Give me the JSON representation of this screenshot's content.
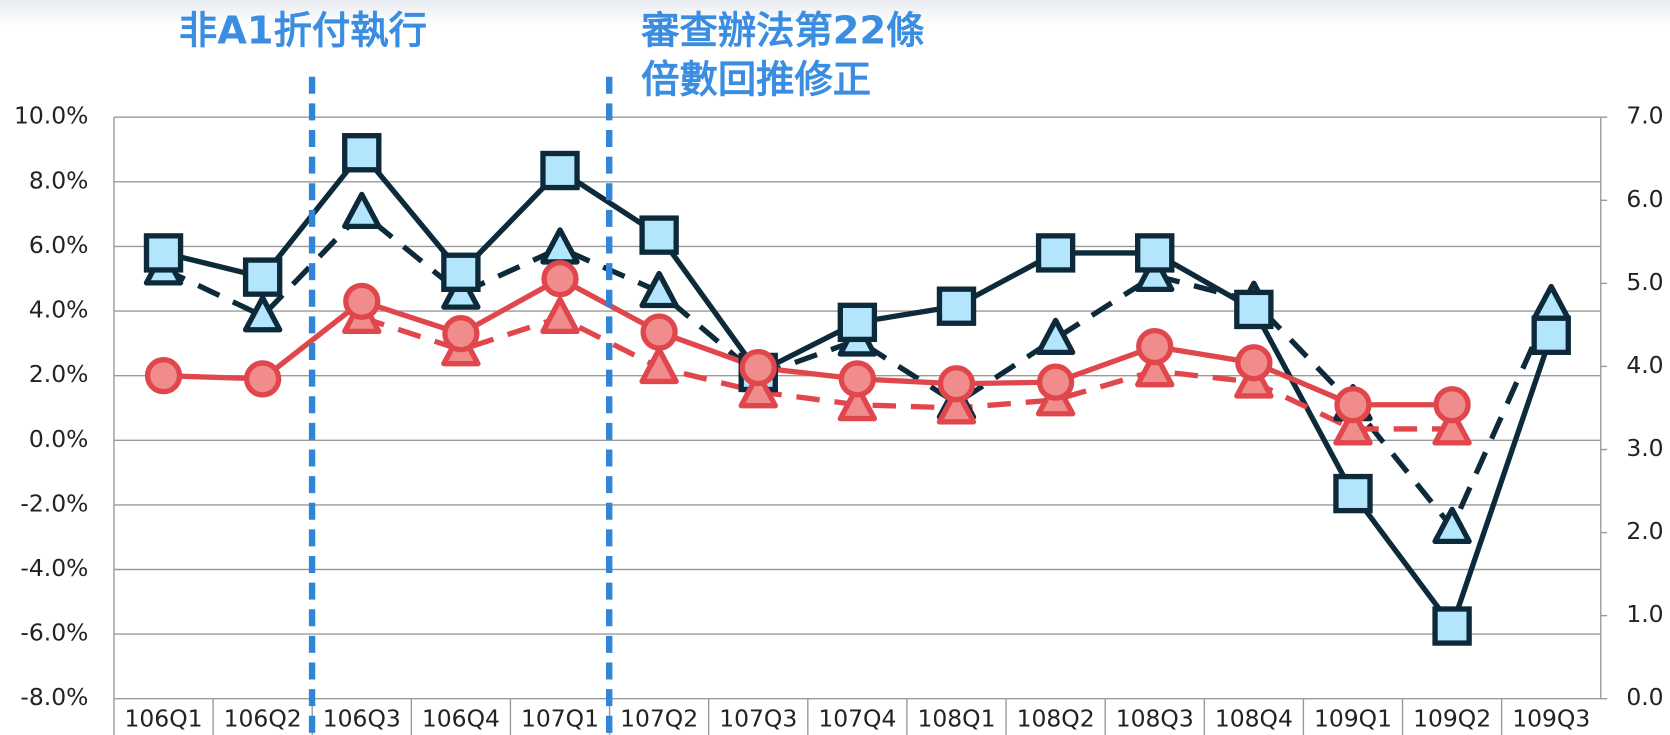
{
  "chart_data": {
    "type": "line",
    "annotations": [
      "非A1折付執行",
      "審查辦法第22條",
      "倍數回推修正"
    ],
    "categories": [
      "106Q1",
      "106Q2",
      "106Q3",
      "106Q4",
      "107Q1",
      "107Q2",
      "107Q3",
      "107Q4",
      "108Q1",
      "108Q2",
      "108Q3",
      "108Q4",
      "109Q1",
      "109Q2",
      "109Q3"
    ],
    "series": [
      {
        "color": "#0d2a3a",
        "fill": "#b3e5fc",
        "marker": "triangle",
        "line_style": "dashed",
        "values": [
          5.3,
          3.85,
          7.05,
          4.55,
          5.95,
          4.6,
          2.0,
          3.1,
          1.15,
          3.15,
          5.1,
          4.3,
          1.1,
          -2.7,
          4.2
        ]
      },
      {
        "color": "#0d2a3a",
        "fill": "#b3e5fc",
        "marker": "square",
        "line_style": "solid",
        "values": [
          5.8,
          5.05,
          8.9,
          5.2,
          8.35,
          6.35,
          2.1,
          3.65,
          4.15,
          5.8,
          5.8,
          4.05,
          -1.65,
          -5.75,
          3.25
        ]
      },
      {
        "color": "#e0474c",
        "fill": "#f08c8c",
        "marker": "triangle",
        "line_style": "dashed",
        "values": [
          null,
          null,
          3.8,
          2.8,
          3.8,
          2.25,
          1.5,
          1.1,
          1.0,
          1.25,
          2.15,
          1.8,
          0.35,
          0.35,
          null
        ]
      },
      {
        "color": "#e0474c",
        "fill": "#f08c8c",
        "marker": "circle",
        "line_style": "solid",
        "values": [
          2.0,
          1.9,
          4.3,
          3.3,
          5.0,
          3.35,
          2.25,
          1.9,
          1.75,
          1.8,
          2.9,
          2.4,
          1.1,
          1.1,
          null
        ]
      }
    ],
    "ylim": [
      -8,
      10
    ],
    "yticks": [
      {
        "value": -8,
        "label": "-8.0%"
      },
      {
        "value": -6,
        "label": "-6.0%"
      },
      {
        "value": -4,
        "label": "-4.0%"
      },
      {
        "value": -2,
        "label": "-2.0%"
      },
      {
        "value": 0,
        "label": "0.0%"
      },
      {
        "value": 2,
        "label": "2.0%"
      },
      {
        "value": 4,
        "label": "4.0%"
      },
      {
        "value": 6,
        "label": "6.0%"
      },
      {
        "value": 8,
        "label": "8.0%"
      },
      {
        "value": 10,
        "label": "10.0%"
      }
    ],
    "y2lim": [
      0,
      7
    ],
    "y2ticks": [
      {
        "value": 0,
        "label": "0.0"
      },
      {
        "value": 1,
        "label": "1.0"
      },
      {
        "value": 2,
        "label": "2.0"
      },
      {
        "value": 3,
        "label": "3.0"
      },
      {
        "value": 4,
        "label": "4.0"
      },
      {
        "value": 5,
        "label": "5.0"
      },
      {
        "value": 6,
        "label": "6.0"
      },
      {
        "value": 7,
        "label": "7.0"
      }
    ],
    "grid": true
  }
}
